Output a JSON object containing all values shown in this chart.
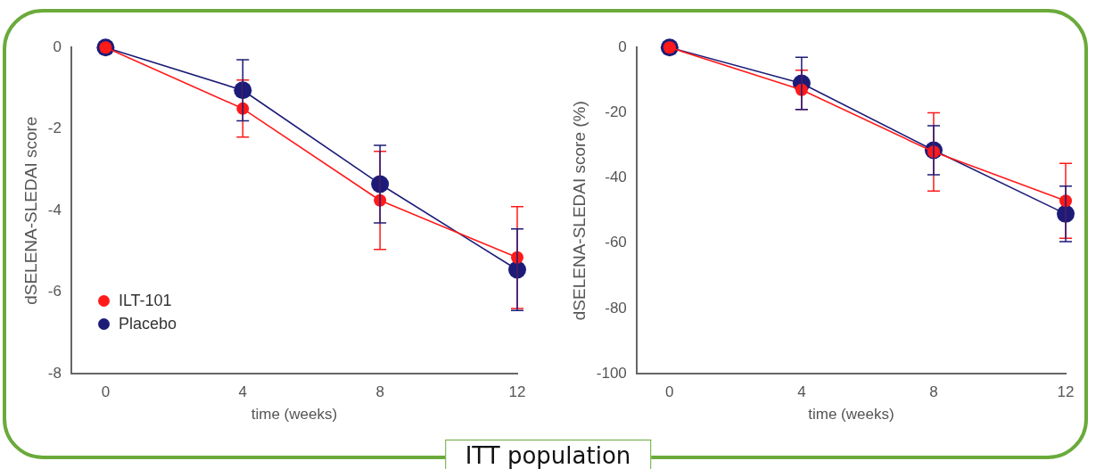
{
  "chart_data": [
    {
      "type": "line",
      "xlabel": "time (weeks)",
      "ylabel": "dSELENA-SLEDAI score",
      "x": [
        0,
        4,
        8,
        12
      ],
      "xlim": [
        -1,
        12
      ],
      "xticks": [
        0,
        4,
        8,
        12
      ],
      "ylim": [
        -8,
        0
      ],
      "yticks": [
        -8,
        -6,
        -4,
        -2,
        0
      ],
      "marker": "circle",
      "legend": "bottom left",
      "grid": false,
      "series": [
        {
          "name": "ILT-101",
          "color": "#ff1a1a",
          "values": [
            0,
            -1.5,
            -3.75,
            -5.15
          ],
          "errors": [
            null,
            0.7,
            1.2,
            1.25
          ]
        },
        {
          "name": "Placebo",
          "color": "#1c1c78",
          "values": [
            0,
            -1.05,
            -3.35,
            -5.45
          ],
          "errors": [
            null,
            0.75,
            0.95,
            1.0
          ]
        }
      ],
      "annotations": [
        "ITT population"
      ]
    },
    {
      "type": "line",
      "xlabel": "time (weeks)",
      "ylabel": "dSELENA-SLEDAI score (%)",
      "x": [
        0,
        4,
        8,
        12
      ],
      "xlim": [
        -1,
        12
      ],
      "xticks": [
        0,
        4,
        8,
        12
      ],
      "ylim": [
        -100,
        0
      ],
      "yticks": [
        -100,
        -80,
        -60,
        -40,
        -20,
        0
      ],
      "marker": "circle",
      "grid": false,
      "series": [
        {
          "color": "#ff1a1a",
          "values": [
            0,
            -13,
            -32,
            -47
          ],
          "errors": [
            null,
            6,
            12,
            11.5
          ]
        },
        {
          "color": "#1c1c78",
          "values": [
            0,
            -11,
            -31.5,
            -51
          ],
          "errors": [
            null,
            8,
            7.5,
            8.5
          ]
        }
      ]
    }
  ]
}
